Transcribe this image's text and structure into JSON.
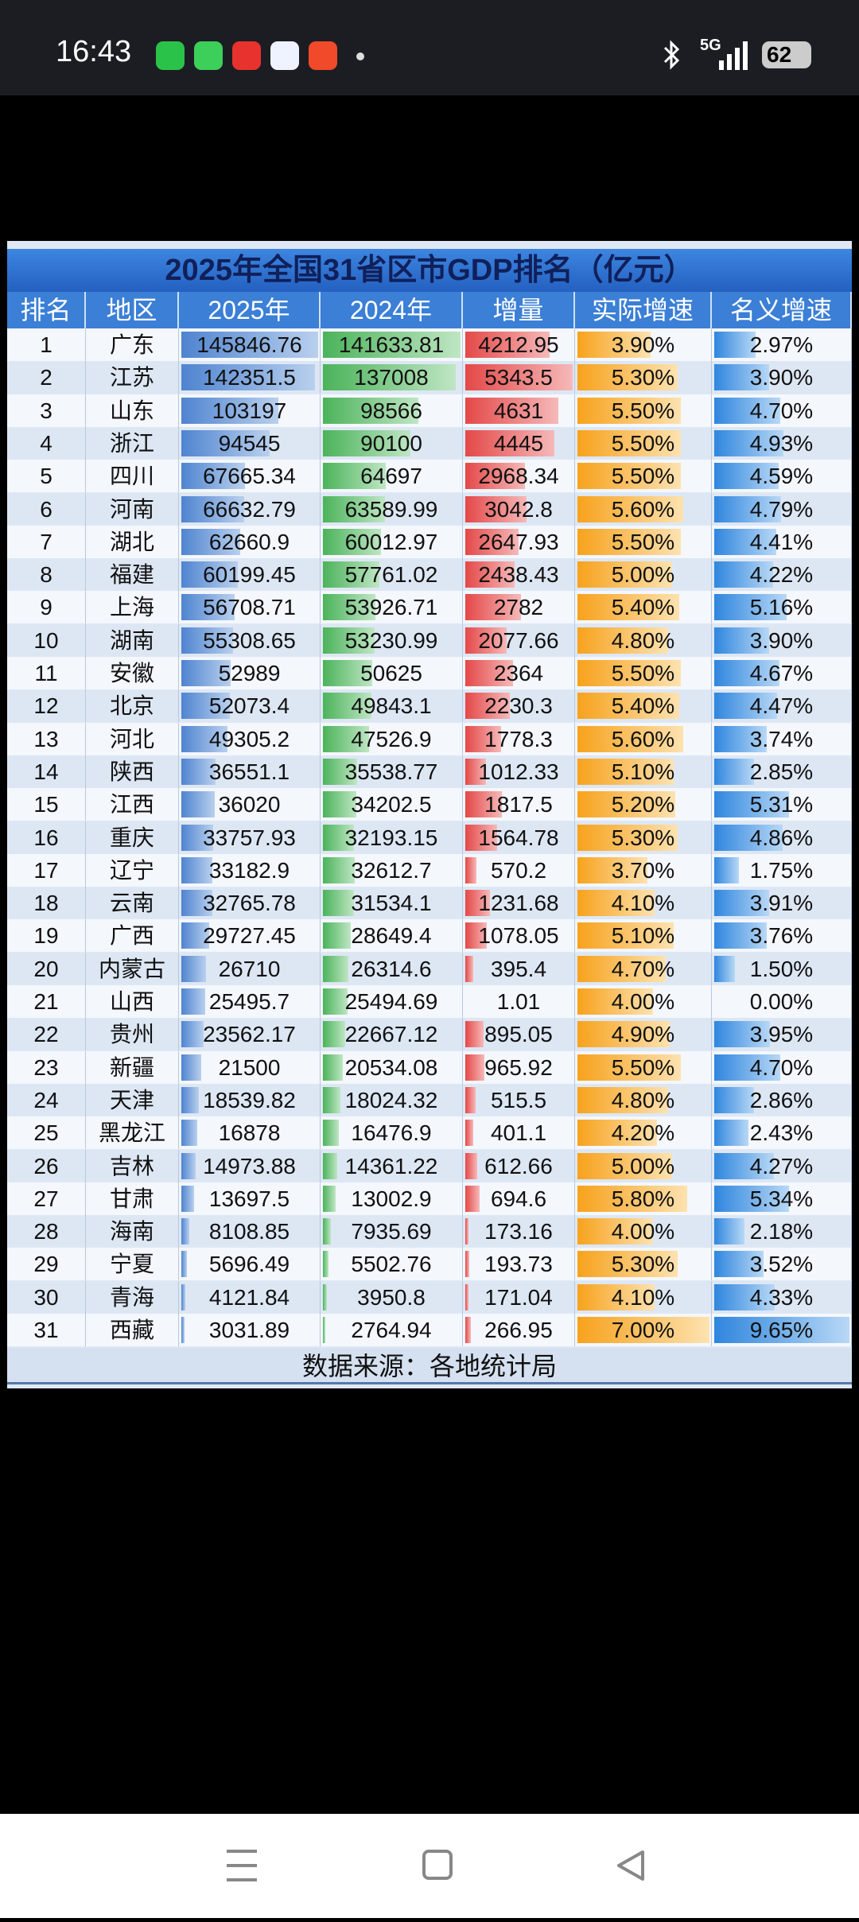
{
  "status_bar": {
    "time": "16:43",
    "network": "5G",
    "battery": "62"
  },
  "table": {
    "title": "2025年全国31省区市GDP排名（亿元）",
    "headers": [
      "排名",
      "地区",
      "2025年",
      "2024年",
      "增量",
      "实际增速",
      "名义增速"
    ],
    "rows": [
      [
        1,
        "广东",
        145846.76,
        141633.81,
        4212.95,
        "3.90%",
        "2.97%"
      ],
      [
        2,
        "江苏",
        142351.5,
        137008,
        5343.5,
        "5.30%",
        "3.90%"
      ],
      [
        3,
        "山东",
        103197,
        98566,
        4631,
        "5.50%",
        "4.70%"
      ],
      [
        4,
        "浙江",
        94545,
        90100,
        4445,
        "5.50%",
        "4.93%"
      ],
      [
        5,
        "四川",
        67665.34,
        64697,
        2968.34,
        "5.50%",
        "4.59%"
      ],
      [
        6,
        "河南",
        66632.79,
        63589.99,
        3042.8,
        "5.60%",
        "4.79%"
      ],
      [
        7,
        "湖北",
        62660.9,
        60012.97,
        2647.93,
        "5.50%",
        "4.41%"
      ],
      [
        8,
        "福建",
        60199.45,
        57761.02,
        2438.43,
        "5.00%",
        "4.22%"
      ],
      [
        9,
        "上海",
        56708.71,
        53926.71,
        2782,
        "5.40%",
        "5.16%"
      ],
      [
        10,
        "湖南",
        55308.65,
        53230.99,
        2077.66,
        "4.80%",
        "3.90%"
      ],
      [
        11,
        "安徽",
        52989,
        50625,
        2364,
        "5.50%",
        "4.67%"
      ],
      [
        12,
        "北京",
        52073.4,
        49843.1,
        2230.3,
        "5.40%",
        "4.47%"
      ],
      [
        13,
        "河北",
        49305.2,
        47526.9,
        1778.3,
        "5.60%",
        "3.74%"
      ],
      [
        14,
        "陕西",
        36551.1,
        35538.77,
        1012.33,
        "5.10%",
        "2.85%"
      ],
      [
        15,
        "江西",
        36020,
        34202.5,
        1817.5,
        "5.20%",
        "5.31%"
      ],
      [
        16,
        "重庆",
        33757.93,
        32193.15,
        1564.78,
        "5.30%",
        "4.86%"
      ],
      [
        17,
        "辽宁",
        33182.9,
        32612.7,
        570.2,
        "3.70%",
        "1.75%"
      ],
      [
        18,
        "云南",
        32765.78,
        31534.1,
        1231.68,
        "4.10%",
        "3.91%"
      ],
      [
        19,
        "广西",
        29727.45,
        28649.4,
        1078.05,
        "5.10%",
        "3.76%"
      ],
      [
        20,
        "内蒙古",
        26710,
        26314.6,
        395.4,
        "4.70%",
        "1.50%"
      ],
      [
        21,
        "山西",
        25495.7,
        25494.69,
        1.01,
        "4.00%",
        "0.00%"
      ],
      [
        22,
        "贵州",
        23562.17,
        22667.12,
        895.05,
        "4.90%",
        "3.95%"
      ],
      [
        23,
        "新疆",
        21500,
        20534.08,
        965.92,
        "5.50%",
        "4.70%"
      ],
      [
        24,
        "天津",
        18539.82,
        18024.32,
        515.5,
        "4.80%",
        "2.86%"
      ],
      [
        25,
        "黑龙江",
        16878,
        16476.9,
        401.1,
        "4.20%",
        "2.43%"
      ],
      [
        26,
        "吉林",
        14973.88,
        14361.22,
        612.66,
        "5.00%",
        "4.27%"
      ],
      [
        27,
        "甘肃",
        13697.5,
        13002.9,
        694.6,
        "5.80%",
        "5.34%"
      ],
      [
        28,
        "海南",
        8108.85,
        7935.69,
        173.16,
        "4.00%",
        "2.18%"
      ],
      [
        29,
        "宁夏",
        5696.49,
        5502.76,
        193.73,
        "5.30%",
        "3.52%"
      ],
      [
        30,
        "青海",
        4121.84,
        3950.8,
        171.04,
        "4.10%",
        "4.33%"
      ],
      [
        31,
        "西藏",
        3031.89,
        2764.94,
        266.95,
        "7.00%",
        "9.65%"
      ]
    ],
    "source": "数据来源：各地统计局"
  }
}
